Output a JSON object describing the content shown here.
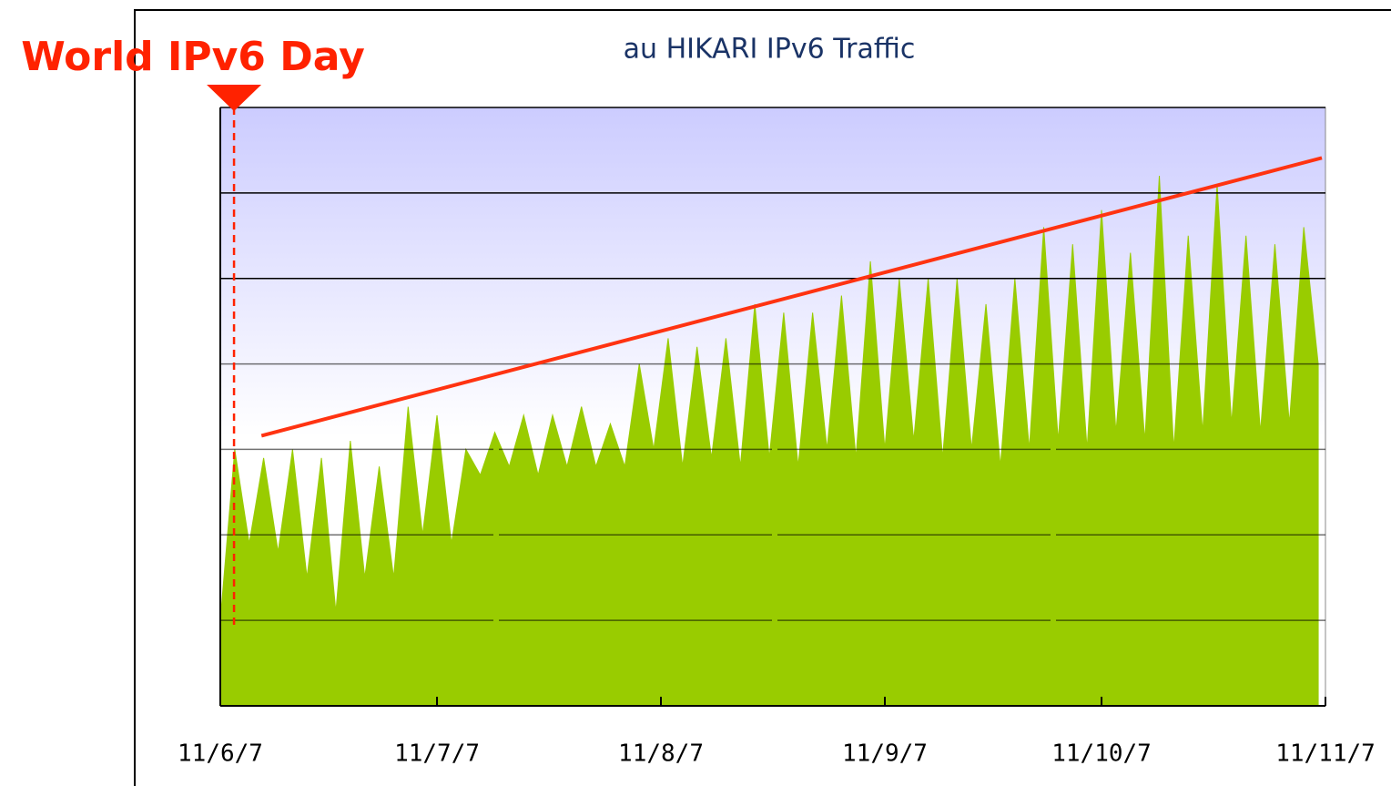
{
  "chart_data": {
    "type": "area",
    "title": "au HIKARI IPv6 Traffic",
    "color": "#99cc00",
    "x": [
      0,
      2,
      4,
      6,
      8,
      10,
      12,
      14,
      16,
      18,
      20,
      22,
      24,
      26,
      28,
      30,
      32,
      34,
      36,
      38,
      40,
      42,
      44,
      46,
      48,
      50,
      52,
      54,
      56,
      58,
      60,
      62,
      64,
      66,
      68,
      70,
      72,
      74,
      76,
      78,
      80,
      82,
      84,
      86,
      88,
      90,
      92,
      94,
      96,
      98,
      100,
      102,
      104,
      106,
      108,
      110,
      112,
      114,
      116,
      118,
      120,
      122,
      124,
      126,
      128,
      130,
      132,
      134,
      136,
      138,
      140,
      142,
      144,
      146,
      148,
      150,
      152
    ],
    "values": [
      1.0,
      3.0,
      1.9,
      2.9,
      1.8,
      3.0,
      1.5,
      2.9,
      1.1,
      3.1,
      1.5,
      2.8,
      1.5,
      3.5,
      2.0,
      3.4,
      1.9,
      3.0,
      2.7,
      3.2,
      2.8,
      3.4,
      2.7,
      3.4,
      2.8,
      3.5,
      2.8,
      3.3,
      2.8,
      4.0,
      3.0,
      4.3,
      2.8,
      4.2,
      2.9,
      4.3,
      2.8,
      4.7,
      2.9,
      4.6,
      2.8,
      4.6,
      3.0,
      4.8,
      2.9,
      5.2,
      3.0,
      5.0,
      3.1,
      5.0,
      2.9,
      5.0,
      3.0,
      4.7,
      2.8,
      5.0,
      3.0,
      5.6,
      3.1,
      5.4,
      3.0,
      5.8,
      3.2,
      5.3,
      3.1,
      6.2,
      3.0,
      5.5,
      3.2,
      6.1,
      3.3,
      5.5,
      3.2,
      5.4,
      3.3,
      5.6,
      4.0
    ],
    "xlim": [
      0,
      153
    ],
    "xticks": [
      {
        "value": 0,
        "label": "11/6/7"
      },
      {
        "value": 30,
        "label": "11/7/7"
      },
      {
        "value": 61,
        "label": "11/8/7"
      },
      {
        "value": 92,
        "label": "11/9/7"
      },
      {
        "value": 122,
        "label": "11/10/7"
      },
      {
        "value": 153,
        "label": "11/11/7"
      }
    ],
    "ylim": [
      0,
      7
    ],
    "yticks": [
      0,
      1,
      2,
      3,
      4,
      5,
      6,
      7
    ],
    "grid": true,
    "trend_line": {
      "x": [
        5.7,
        152.5
      ],
      "values": [
        3.16,
        6.41
      ],
      "color": "#ff3311"
    },
    "annotation": {
      "text": "World IPv6 Day",
      "x": 1.9,
      "color": "#ff2200"
    }
  }
}
